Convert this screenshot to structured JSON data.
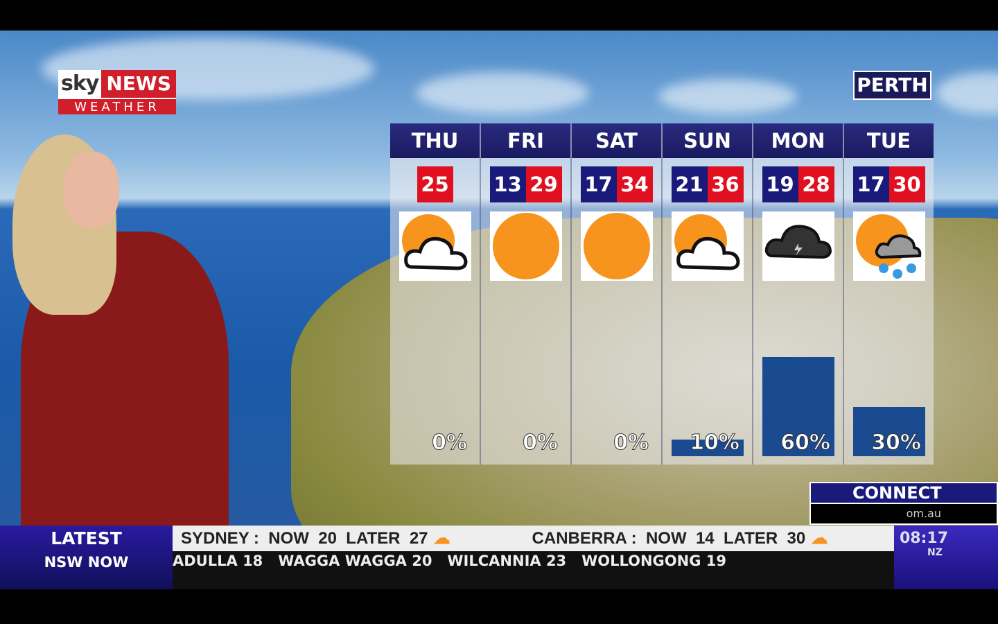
{
  "branding": {
    "logo_sky": "sky",
    "logo_news": "NEWS",
    "logo_weather": "WEATHER"
  },
  "location": "PERTH",
  "forecast": [
    {
      "day": "THU",
      "low": null,
      "high": "25",
      "icon": "partly-cloudy-icon",
      "rain": "0%",
      "rain_pct": 0
    },
    {
      "day": "FRI",
      "low": "13",
      "high": "29",
      "icon": "sunny-icon",
      "rain": "0%",
      "rain_pct": 0
    },
    {
      "day": "SAT",
      "low": "17",
      "high": "34",
      "icon": "sunny-icon",
      "rain": "0%",
      "rain_pct": 0
    },
    {
      "day": "SUN",
      "low": "21",
      "high": "36",
      "icon": "partly-cloudy-icon",
      "rain": "10%",
      "rain_pct": 10
    },
    {
      "day": "MON",
      "low": "19",
      "high": "28",
      "icon": "storm-icon",
      "rain": "60%",
      "rain_pct": 60
    },
    {
      "day": "TUE",
      "low": "17",
      "high": "30",
      "icon": "showers-icon",
      "rain": "30%",
      "rain_pct": 30
    }
  ],
  "colors": {
    "low": "#1a1a7a",
    "high": "#e01020",
    "header": "#2a2a80",
    "sun": "#f7941d",
    "rain_bar": "#1a4a90"
  },
  "connect": {
    "label": "CONNECT",
    "url_fragment": "om.au"
  },
  "ticker": {
    "latest": "LATEST",
    "section": "NSW NOW",
    "headline1": "SYDNEY :  NOW  20  LATER  27",
    "headline2": "CANBERRA :  NOW  14  LATER  30",
    "crawl": "ADULLA 18   WAGGA WAGGA 20   WILCANNIA 23   WOLLONGONG 19",
    "time": "08:17",
    "tz": "NZ"
  }
}
